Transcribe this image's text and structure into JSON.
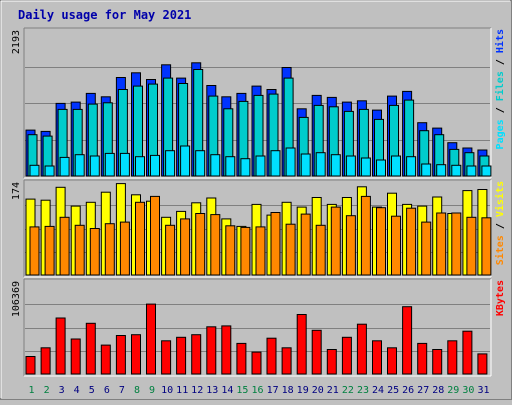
{
  "chart_data": [
    {
      "type": "bar",
      "title": "Daily usage for May 2021",
      "categories": [
        "1",
        "2",
        "3",
        "4",
        "5",
        "6",
        "7",
        "8",
        "9",
        "10",
        "11",
        "12",
        "13",
        "14",
        "15",
        "16",
        "17",
        "18",
        "19",
        "20",
        "21",
        "22",
        "23",
        "24",
        "25",
        "26",
        "27",
        "28",
        "29",
        "30",
        "31"
      ],
      "weekend_days": [
        "1",
        "2",
        "8",
        "9",
        "15",
        "16",
        "22",
        "23",
        "29",
        "30"
      ],
      "ymax_label": "2193",
      "ylim": [
        0,
        2193
      ],
      "series": [
        {
          "name": "Hits",
          "color": "#0033ff",
          "values": [
            690,
            670,
            1090,
            1110,
            1240,
            1190,
            1480,
            1550,
            1450,
            1670,
            1470,
            1700,
            1360,
            1190,
            1240,
            1350,
            1300,
            1630,
            1010,
            1210,
            1180,
            1110,
            1130,
            990,
            1200,
            1270,
            800,
            720,
            500,
            420,
            390
          ]
        },
        {
          "name": "Files",
          "color": "#00cccc",
          "values": [
            620,
            600,
            1000,
            1000,
            1080,
            1100,
            1300,
            1350,
            1380,
            1470,
            1390,
            1600,
            1200,
            1010,
            1120,
            1210,
            1230,
            1470,
            880,
            1060,
            1040,
            970,
            1000,
            850,
            1060,
            1140,
            680,
            620,
            400,
            350,
            300
          ]
        },
        {
          "name": "Pages",
          "color": "#00e0ff",
          "values": [
            160,
            150,
            280,
            320,
            300,
            340,
            340,
            290,
            310,
            380,
            450,
            380,
            320,
            290,
            260,
            300,
            380,
            420,
            330,
            350,
            320,
            300,
            270,
            240,
            300,
            290,
            180,
            170,
            160,
            150,
            150
          ]
        }
      ]
    },
    {
      "type": "bar",
      "ymax_label": "174",
      "ylim": [
        0,
        174
      ],
      "series": [
        {
          "name": "Visits",
          "color": "#ffff00",
          "values": [
            142,
            140,
            164,
            129,
            136,
            155,
            171,
            150,
            138,
            108,
            119,
            135,
            144,
            105,
            91,
            132,
            112,
            136,
            127,
            145,
            132,
            145,
            165,
            127,
            153,
            132,
            129,
            146,
            115,
            158,
            160
          ]
        },
        {
          "name": "Sites",
          "color": "#ff8800",
          "values": [
            90,
            91,
            108,
            93,
            87,
            96,
            99,
            136,
            147,
            93,
            105,
            115,
            113,
            92,
            89,
            90,
            117,
            95,
            114,
            93,
            127,
            111,
            147,
            126,
            110,
            125,
            99,
            116,
            116,
            108,
            107
          ]
        }
      ]
    },
    {
      "type": "bar",
      "ymax_label": "106369",
      "ylim": [
        0,
        106369
      ],
      "series": [
        {
          "name": "KBytes",
          "color": "#ff0000",
          "values": [
            20000,
            30000,
            64000,
            40000,
            58000,
            33000,
            44000,
            45000,
            80000,
            38000,
            42000,
            45000,
            54000,
            55000,
            35000,
            25000,
            41000,
            30000,
            68000,
            50000,
            28000,
            42000,
            57000,
            38000,
            30000,
            77000,
            35000,
            28000,
            38000,
            49000,
            23000
          ]
        }
      ]
    }
  ]
}
